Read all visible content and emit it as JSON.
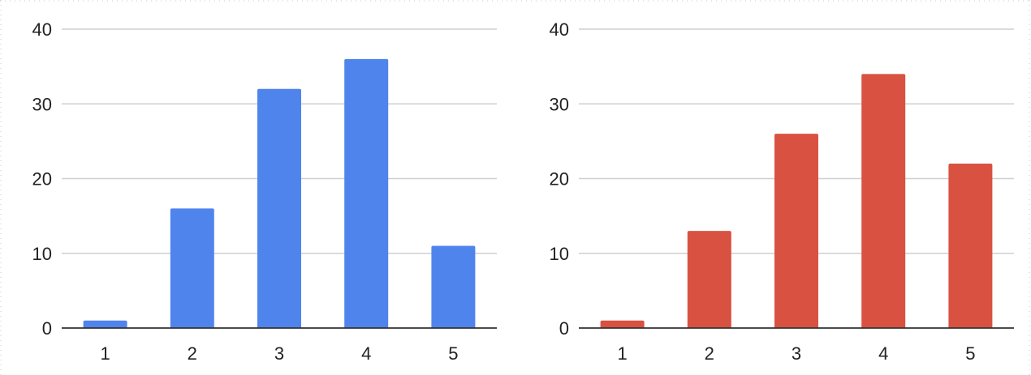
{
  "chart_data": [
    {
      "type": "bar",
      "categories": [
        "1",
        "2",
        "3",
        "4",
        "5"
      ],
      "values": [
        1,
        16,
        32,
        36,
        11
      ],
      "ylim": [
        0,
        40
      ],
      "yticks": [
        0,
        10,
        20,
        30,
        40
      ],
      "color": "#5084ed",
      "grid": true,
      "legend": "none",
      "title": "",
      "xlabel": "",
      "ylabel": ""
    },
    {
      "type": "bar",
      "categories": [
        "1",
        "2",
        "3",
        "4",
        "5"
      ],
      "values": [
        1,
        13,
        26,
        34,
        22
      ],
      "ylim": [
        0,
        40
      ],
      "yticks": [
        0,
        10,
        20,
        30,
        40
      ],
      "color": "#d95141",
      "grid": true,
      "legend": "none",
      "title": "",
      "xlabel": "",
      "ylabel": ""
    }
  ]
}
